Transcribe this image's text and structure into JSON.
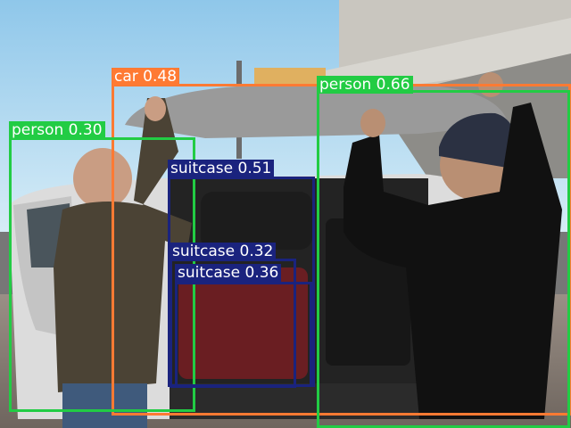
{
  "colors": {
    "person": "#22cc44",
    "car": "#ff7a33",
    "suitcase": "#1a237e"
  },
  "detections": [
    {
      "label": "car 0.48",
      "cls": "car"
    },
    {
      "label": "person 0.66",
      "cls": "person"
    },
    {
      "label": "person 0.30",
      "cls": "person"
    },
    {
      "label": "suitcase 0.51",
      "cls": "suitcase"
    },
    {
      "label": "suitcase 0.32",
      "cls": "suitcase"
    },
    {
      "label": "suitcase 0.36",
      "cls": "suitcase"
    }
  ]
}
